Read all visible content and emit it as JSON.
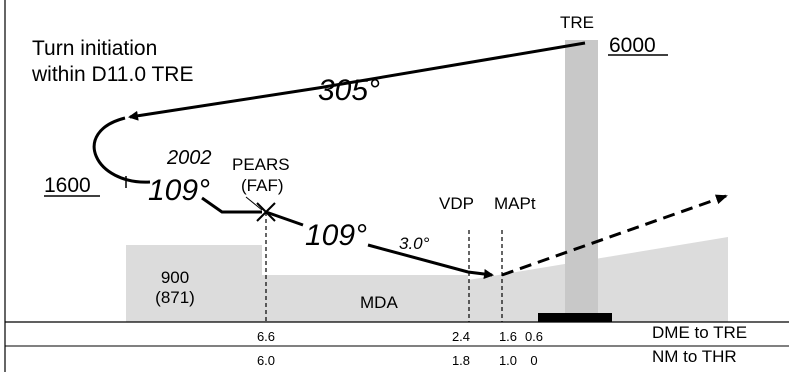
{
  "notes": {
    "turn_initiation_1": "Turn initiation",
    "turn_initiation_2": "within D11.0 TRE"
  },
  "fixes": {
    "tre": "TRE",
    "pears": "PEARS",
    "faf": "(FAF)",
    "vdp": "VDP",
    "mapt": "MAPt"
  },
  "altitudes": {
    "tre_alt": "6000",
    "procedure_turn_alt": "1600",
    "faf_alt": "2002",
    "obstacle_alt": "900",
    "obstacle_height": "(871)",
    "mda": "MDA"
  },
  "courses": {
    "outbound": "305°",
    "inbound_1": "109°",
    "inbound_2": "109°",
    "glide_angle": "3.0°"
  },
  "table": {
    "dme_header": "DME to TRE",
    "nm_header": "NM to THR",
    "dme_values": [
      "6.6",
      "2.4",
      "1.6",
      "0.6"
    ],
    "nm_values": [
      "6.0",
      "1.8",
      "1.0",
      "0"
    ]
  },
  "colors": {
    "terrain": "#dcdcdc",
    "beacon_column": "#c8c8c8",
    "line": "#000000"
  }
}
